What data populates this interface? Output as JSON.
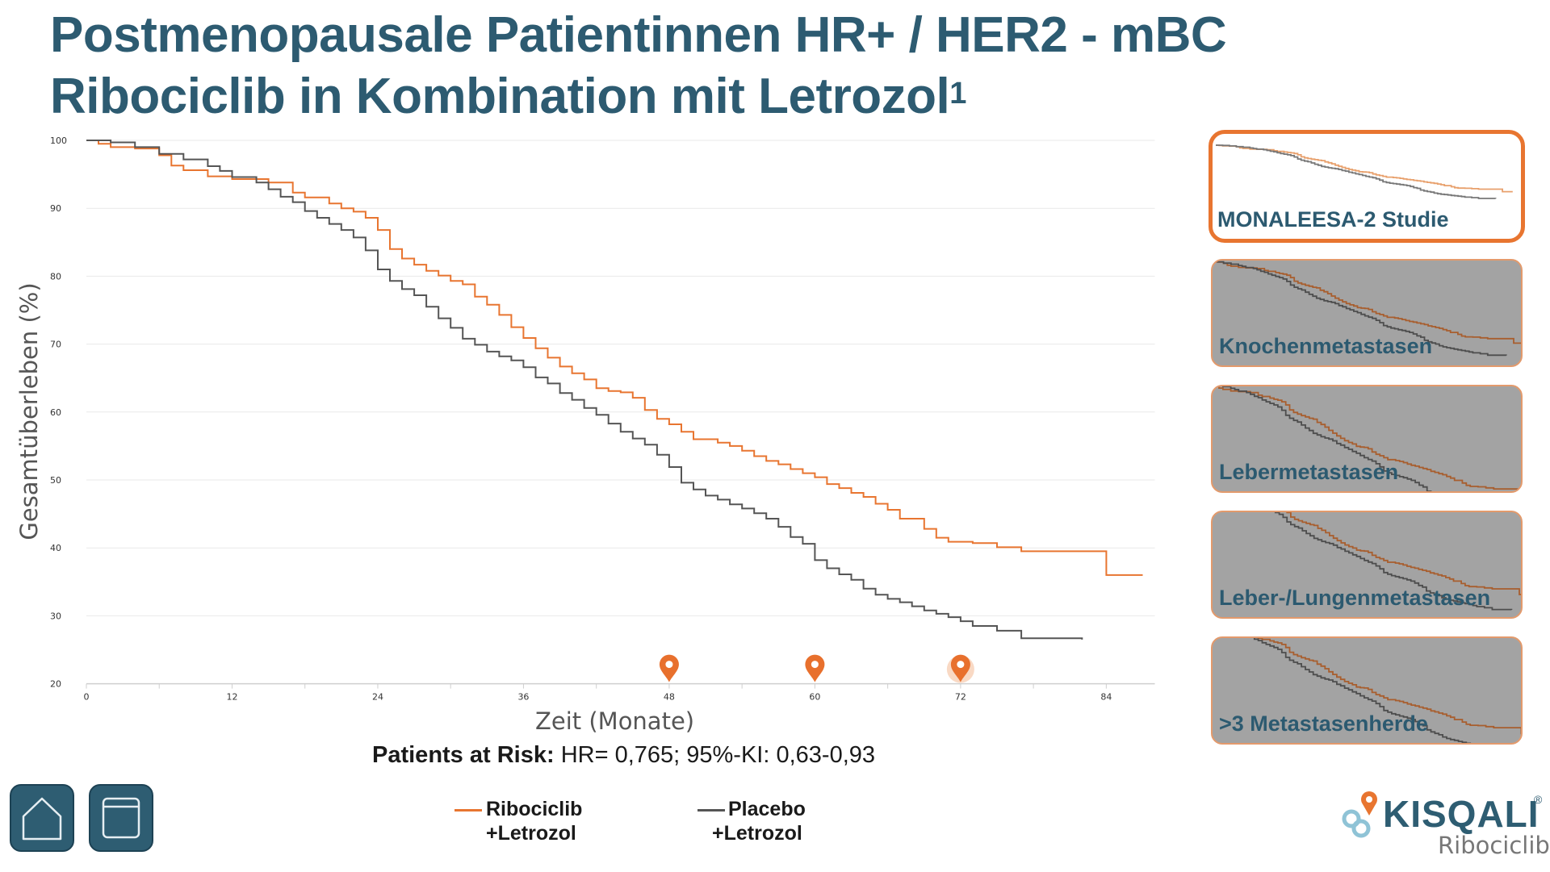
{
  "title": {
    "line1": "Postmenopausale Patientinnen HR+ / HER2 - mBC",
    "line2": "Ribociclib in Kombination mit Letrozol",
    "footnote": "1"
  },
  "colors": {
    "accent": "#e87530",
    "brand": "#2d5b71",
    "placebo": "#555555"
  },
  "chart_data": {
    "type": "line",
    "xlabel": "Zeit (Monate)",
    "ylabel": "Gesamtüberleben (%)",
    "xlim": [
      0,
      88
    ],
    "ylim": [
      20,
      100
    ],
    "xticks": [
      "0",
      "12",
      "24",
      "36",
      "48",
      "60",
      "72",
      "84"
    ],
    "yticks": [
      "100",
      "90",
      "80",
      "70",
      "60",
      "50",
      "40",
      "30",
      "20"
    ],
    "grid": true,
    "markers_at_months": [
      48,
      60,
      72
    ],
    "series": [
      {
        "name": "Ribociclib +Letrozol",
        "color": "#e87530",
        "points": [
          [
            0,
            100
          ],
          [
            1,
            99.5
          ],
          [
            2,
            99
          ],
          [
            4,
            98.8
          ],
          [
            6,
            97.8
          ],
          [
            7,
            96.3
          ],
          [
            8,
            95.6
          ],
          [
            10,
            94.7
          ],
          [
            12,
            94.3
          ],
          [
            15,
            93.8
          ],
          [
            17,
            92.3
          ],
          [
            18,
            91.6
          ],
          [
            20,
            90.7
          ],
          [
            21,
            90
          ],
          [
            22,
            89.5
          ],
          [
            23,
            88.6
          ],
          [
            24,
            86.8
          ],
          [
            25,
            84
          ],
          [
            26,
            82.6
          ],
          [
            27,
            81.7
          ],
          [
            28,
            80.8
          ],
          [
            29,
            80.1
          ],
          [
            30,
            79.3
          ],
          [
            31,
            78.8
          ],
          [
            32,
            77
          ],
          [
            33,
            75.8
          ],
          [
            34,
            74.3
          ],
          [
            35,
            72.5
          ],
          [
            36,
            70.9
          ],
          [
            37,
            69.4
          ],
          [
            38,
            68
          ],
          [
            39,
            66.7
          ],
          [
            40,
            65.7
          ],
          [
            41,
            64.8
          ],
          [
            42,
            63.5
          ],
          [
            43,
            63.1
          ],
          [
            44,
            62.9
          ],
          [
            45,
            62.1
          ],
          [
            46,
            60.3
          ],
          [
            47,
            59
          ],
          [
            48,
            58.2
          ],
          [
            49,
            57.1
          ],
          [
            50,
            56
          ],
          [
            52,
            55.5
          ],
          [
            53,
            55
          ],
          [
            54,
            54.3
          ],
          [
            55,
            53.5
          ],
          [
            56,
            52.8
          ],
          [
            57,
            52.3
          ],
          [
            58,
            51.6
          ],
          [
            59,
            51
          ],
          [
            60,
            50.4
          ],
          [
            61,
            49.4
          ],
          [
            62,
            48.8
          ],
          [
            63,
            48.1
          ],
          [
            64,
            47.5
          ],
          [
            65,
            46.5
          ],
          [
            66,
            45.6
          ],
          [
            67,
            44.3
          ],
          [
            69,
            42.8
          ],
          [
            70,
            41.5
          ],
          [
            71,
            40.9
          ],
          [
            73,
            40.7
          ],
          [
            75,
            40.1
          ],
          [
            77,
            39.5
          ],
          [
            84,
            36
          ],
          [
            87,
            36
          ]
        ]
      },
      {
        "name": "Placebo +Letrozol",
        "color": "#555555",
        "points": [
          [
            0,
            100
          ],
          [
            2,
            99.7
          ],
          [
            4,
            99
          ],
          [
            6,
            98
          ],
          [
            8,
            97.2
          ],
          [
            10,
            96.2
          ],
          [
            11,
            95.5
          ],
          [
            12,
            94.6
          ],
          [
            14,
            93.8
          ],
          [
            15,
            92.8
          ],
          [
            16,
            91.7
          ],
          [
            17,
            90.9
          ],
          [
            18,
            89.6
          ],
          [
            19,
            88.6
          ],
          [
            20,
            87.7
          ],
          [
            21,
            86.8
          ],
          [
            22,
            85.7
          ],
          [
            23,
            83.8
          ],
          [
            24,
            81
          ],
          [
            25,
            79.3
          ],
          [
            26,
            78.1
          ],
          [
            27,
            77.2
          ],
          [
            28,
            75.5
          ],
          [
            29,
            73.8
          ],
          [
            30,
            72.4
          ],
          [
            31,
            70.8
          ],
          [
            32,
            69.9
          ],
          [
            33,
            68.9
          ],
          [
            34,
            68.2
          ],
          [
            35,
            67.6
          ],
          [
            36,
            66.6
          ],
          [
            37,
            65.1
          ],
          [
            38,
            64.2
          ],
          [
            39,
            62.8
          ],
          [
            40,
            61.8
          ],
          [
            41,
            60.6
          ],
          [
            42,
            59.6
          ],
          [
            43,
            58.3
          ],
          [
            44,
            57.1
          ],
          [
            45,
            56.1
          ],
          [
            46,
            55.2
          ],
          [
            47,
            53.7
          ],
          [
            48,
            51.9
          ],
          [
            49,
            49.6
          ],
          [
            50,
            48.6
          ],
          [
            51,
            47.7
          ],
          [
            52,
            47.1
          ],
          [
            53,
            46.4
          ],
          [
            54,
            45.8
          ],
          [
            55,
            45.1
          ],
          [
            56,
            44.3
          ],
          [
            57,
            43.1
          ],
          [
            58,
            41.6
          ],
          [
            59,
            40.6
          ],
          [
            60,
            38.2
          ],
          [
            61,
            37
          ],
          [
            62,
            36.1
          ],
          [
            63,
            35.3
          ],
          [
            64,
            34
          ],
          [
            65,
            33.1
          ],
          [
            66,
            32.5
          ],
          [
            67,
            32
          ],
          [
            68,
            31.4
          ],
          [
            69,
            30.8
          ],
          [
            70,
            30.3
          ],
          [
            71,
            29.8
          ],
          [
            72,
            29.2
          ],
          [
            73,
            28.5
          ],
          [
            75,
            27.8
          ],
          [
            77,
            26.7
          ],
          [
            79,
            26.7
          ],
          [
            82,
            26.5
          ]
        ]
      }
    ]
  },
  "risk_text": {
    "label": "Patients at Risk:",
    "value": " HR= 0,765; 95%-KI: 0,63-0,93"
  },
  "legend": [
    {
      "line1": "Ribociclib",
      "line2": "+Letrozol"
    },
    {
      "line1": "Placebo",
      "line2": "+Letrozol"
    }
  ],
  "thumbnails": [
    {
      "label": "MONALEESA-2 Studie",
      "active": true
    },
    {
      "label": "Knochenmetastasen",
      "active": false
    },
    {
      "label": "Lebermetastasen",
      "active": false
    },
    {
      "label": "Leber-/Lungenmetastasen",
      "active": false
    },
    {
      "label": ">3 Metastasenherde",
      "active": false
    }
  ],
  "nav": {
    "home_icon": "home-icon",
    "window_icon": "window-icon"
  },
  "brand": {
    "name": "KISQALI",
    "registered": "®",
    "sub": "Ribociclib"
  }
}
